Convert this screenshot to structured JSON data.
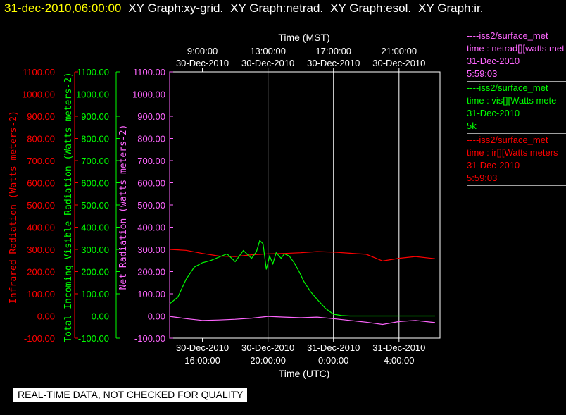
{
  "header": {
    "timestamp": "31-dec-2010,06:00:00",
    "graphs": [
      "XY Graph:xy-grid.",
      "XY Graph:netrad.",
      "XY Graph:esol.",
      "XY Graph:ir."
    ]
  },
  "footer": {
    "notice": "REAL-TIME DATA, NOT CHECKED FOR QUALITY"
  },
  "legend": [
    {
      "color": "#ff66ff",
      "lines": [
        "----iss2/surface_met",
        "time : netrad[][watts met",
        "31-Dec-2010",
        "5:59:03"
      ]
    },
    {
      "color": "#00ff00",
      "lines": [
        "----iss2/surface_met",
        "time : vis[][Watts mete",
        "31-Dec-2010",
        "5k"
      ]
    },
    {
      "color": "#ff0000",
      "lines": [
        "----iss2/surface_met",
        "time : ir[][Watts meters",
        "31-Dec-2010",
        "5:59:03"
      ]
    }
  ],
  "chart_data": {
    "type": "line",
    "top_axis": {
      "title": "Time (MST)",
      "ticks": [
        {
          "x": 0,
          "line1": "9:00:00",
          "line2": "30-Dec-2010"
        },
        {
          "x": 4,
          "line1": "13:00:00",
          "line2": "30-Dec-2010"
        },
        {
          "x": 8,
          "line1": "17:00:00",
          "line2": "30-Dec-2010"
        },
        {
          "x": 12,
          "line1": "21:00:00",
          "line2": "30-Dec-2010"
        }
      ]
    },
    "bottom_axis": {
      "title": "Time (UTC)",
      "xlim": [
        -2,
        14.5
      ],
      "ticks": [
        {
          "x": 0,
          "line1": "30-Dec-2010",
          "line2": "16:00:00"
        },
        {
          "x": 4,
          "line1": "30-Dec-2010",
          "line2": "20:00:00"
        },
        {
          "x": 8,
          "line1": "31-Dec-2010",
          "line2": "0:00:00"
        },
        {
          "x": 12,
          "line1": "31-Dec-2010",
          "line2": "4:00:00"
        }
      ]
    },
    "grid_x": [
      4,
      8,
      12
    ],
    "y_axes": [
      {
        "label": "Infrared Radiation (Watts meters-2)",
        "color": "#ff0000",
        "ticks": [
          "1100.00",
          "1000.00",
          "900.00",
          "800.00",
          "700.00",
          "600.00",
          "500.00",
          "400.00",
          "300.00",
          "200.00",
          "100.00",
          "0.00",
          "-100.00"
        ]
      },
      {
        "label": "Total Incoming Visible Radiation (Watts meters-2)",
        "color": "#00ff00",
        "ticks": [
          "1100.00",
          "1000.00",
          "900.00",
          "800.00",
          "700.00",
          "600.00",
          "500.00",
          "400.00",
          "300.00",
          "200.00",
          "100.00",
          "0.00",
          "-100.00"
        ]
      },
      {
        "label": "Net Radiation (watts meters-2)",
        "color": "#ff66ff",
        "ticks": [
          "1100.00",
          "1000.00",
          "900.00",
          "800.00",
          "700.00",
          "600.00",
          "500.00",
          "400.00",
          "300.00",
          "200.00",
          "100.00",
          "0.00",
          "-100.00"
        ]
      }
    ],
    "ylim": [
      -100,
      1100
    ],
    "series": [
      {
        "color": "#ff0000",
        "x": [
          -2,
          -1,
          0,
          1,
          2,
          3,
          4,
          5,
          6,
          7,
          8,
          9,
          10,
          11,
          12,
          13,
          14.2
        ],
        "values": [
          300,
          296,
          282,
          270,
          268,
          276,
          280,
          282,
          285,
          290,
          288,
          283,
          278,
          248,
          260,
          268,
          258
        ]
      },
      {
        "color": "#00ff00",
        "x": [
          -2,
          -1.5,
          -1,
          -0.5,
          0,
          0.5,
          1,
          1.5,
          2,
          2.5,
          3,
          3.3,
          3.5,
          3.7,
          3.9,
          4.1,
          4.3,
          4.5,
          4.8,
          5,
          5.3,
          5.6,
          5.9,
          6.2,
          6.6,
          7,
          7.5,
          8,
          8.5,
          9,
          10,
          11,
          12,
          13,
          14.2
        ],
        "values": [
          55,
          85,
          165,
          220,
          240,
          250,
          265,
          280,
          245,
          295,
          260,
          290,
          340,
          325,
          210,
          270,
          235,
          285,
          260,
          280,
          270,
          240,
          200,
          155,
          110,
          75,
          35,
          8,
          2,
          0,
          0,
          0,
          0,
          0,
          0
        ]
      },
      {
        "color": "#ff66ff",
        "x": [
          -2,
          -1,
          0,
          1,
          2,
          3,
          4,
          5,
          6,
          7,
          8,
          9,
          10,
          11,
          12,
          13,
          14.2
        ],
        "values": [
          -2,
          -12,
          -20,
          -18,
          -15,
          -10,
          -2,
          -5,
          -8,
          -5,
          -12,
          -20,
          -28,
          -38,
          -25,
          -20,
          -30
        ]
      }
    ]
  }
}
